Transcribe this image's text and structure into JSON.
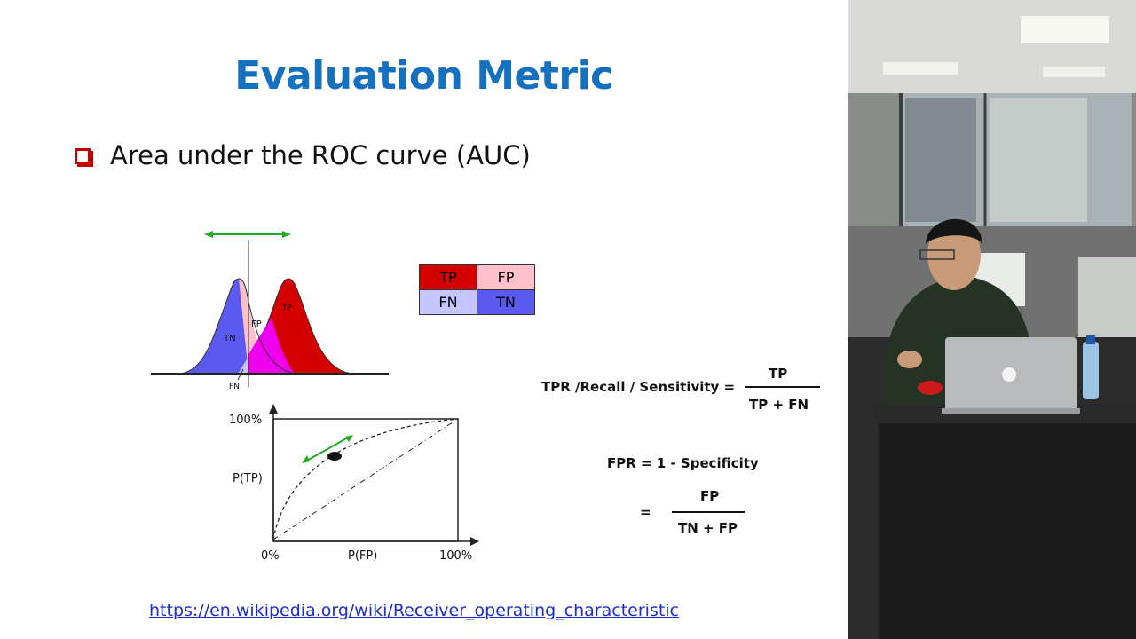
{
  "slide": {
    "title": "Evaluation Metric",
    "bullet": "Area under the ROC curve (AUC)",
    "distribution_labels": {
      "tn": "TN",
      "fp": "FP",
      "tp": "TP",
      "fn": "FN"
    },
    "confusion_matrix": [
      [
        "TP",
        "FP"
      ],
      [
        "FN",
        "TN"
      ]
    ],
    "roc_axes": {
      "y_top": "100%",
      "y_label": "P(TP)",
      "x_start": "0%",
      "x_label": "P(FP)",
      "x_end": "100%"
    },
    "tpr": {
      "lhs": "TPR /Recall / Sensitivity =",
      "num": "TP",
      "den": "TP + FN"
    },
    "fpr": {
      "lhs": "FPR = 1 - Specificity",
      "eq": "=",
      "num": "FP",
      "den": "TN + FP"
    },
    "link": "https://en.wikipedia.org/wiki/Receiver_operating_characteristic",
    "colors": {
      "title": "#1570bf",
      "bullet": "#c00000",
      "tn_blue": "#5a5af0",
      "tp_red": "#d40000",
      "fp_pink": "#ffc0cb",
      "overlap_magenta": "#ee00ee",
      "fn_lavender": "#c6c6ff",
      "arrow_green": "#22aa22"
    }
  },
  "video": {
    "description_icons": [
      "presenter",
      "laptop",
      "office-background"
    ]
  }
}
